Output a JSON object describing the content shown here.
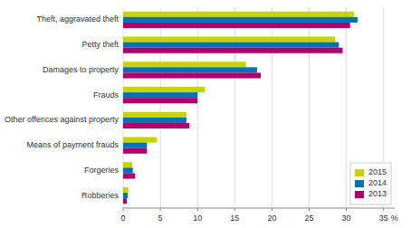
{
  "chart_data": {
    "type": "bar",
    "orientation": "horizontal",
    "categories": [
      "Theft, aggravated theft",
      "Petty theft",
      "Damages to property",
      "Frauds",
      "Other offences against property",
      "Means of payment frauds",
      "Forgeries",
      "Robberies"
    ],
    "series": [
      {
        "name": "2015",
        "color": "#c8d400",
        "values": [
          31.0,
          28.5,
          16.5,
          11.0,
          8.5,
          4.5,
          1.2,
          0.7
        ]
      },
      {
        "name": "2014",
        "color": "#0072b5",
        "values": [
          31.5,
          29.0,
          18.0,
          10.0,
          8.5,
          3.2,
          1.3,
          0.6
        ]
      },
      {
        "name": "2013",
        "color": "#b0006e",
        "values": [
          30.5,
          29.5,
          18.5,
          10.0,
          8.9,
          3.2,
          1.6,
          0.5
        ]
      }
    ],
    "x_label": "%",
    "xlim": [
      0,
      36.5
    ],
    "xticks": [
      0,
      5,
      10,
      15,
      20,
      25,
      30,
      35
    ],
    "grid": true,
    "legend": "lower right"
  }
}
